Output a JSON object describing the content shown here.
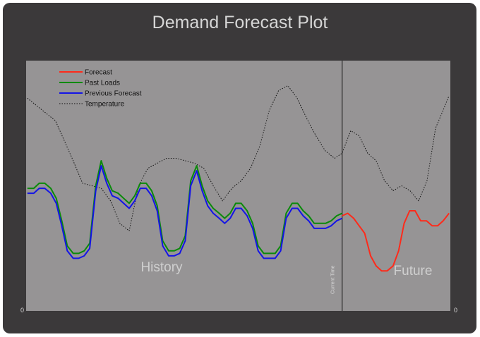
{
  "chart_data": {
    "type": "line",
    "title": "Demand Forecast Plot",
    "xlabel": "",
    "ylabel": "",
    "y_axis_left_tick": "0",
    "y_axis_right_tick": "0",
    "grid": false,
    "legend_position": "top-left",
    "current_time_label": "Current Time",
    "region_labels": {
      "history": "History",
      "future": "Future"
    },
    "x_range": [
      0,
      100
    ],
    "y_range": [
      0,
      100
    ],
    "current_time_x": 74.5,
    "series": [
      {
        "name": "Forecast",
        "color": "#ff2a1a",
        "style": "solid",
        "x": [
          74.5,
          75.8,
          77.2,
          78.5,
          79.8,
          81.2,
          82.5,
          83.8,
          85.1,
          86.5,
          87.8,
          89.1,
          90.4,
          91.7,
          93.0,
          94.4,
          95.7,
          97.0,
          98.3,
          99.7
        ],
        "y": [
          38,
          39,
          37,
          34,
          31,
          22,
          18,
          16,
          16,
          18,
          24,
          35,
          40,
          40,
          36,
          36,
          34,
          34,
          36,
          39
        ]
      },
      {
        "name": "Past Loads",
        "color": "#0a8a0a",
        "style": "solid",
        "x": [
          0.3,
          1.8,
          3.1,
          4.4,
          5.8,
          7.1,
          8.4,
          9.7,
          11.1,
          12.4,
          13.7,
          15.0,
          16.4,
          17.7,
          19.0,
          20.3,
          21.7,
          23.0,
          24.3,
          25.6,
          26.9,
          28.3,
          29.6,
          30.9,
          32.2,
          33.6,
          34.9,
          36.2,
          37.5,
          38.8,
          40.2,
          41.5,
          42.8,
          44.1,
          45.5,
          46.8,
          48.1,
          49.4,
          50.7,
          52.1,
          53.4,
          54.7,
          56.0,
          57.4,
          58.7,
          60.0,
          61.3,
          62.7,
          64.0,
          65.3,
          66.6,
          67.9,
          69.3,
          70.6,
          71.9,
          73.2,
          74.5
        ],
        "y": [
          49,
          49,
          51,
          51,
          49,
          45,
          36,
          26,
          23,
          23,
          24,
          27,
          50,
          60,
          53,
          48,
          47,
          45,
          43,
          46,
          51,
          51,
          48,
          42,
          28,
          24,
          24,
          25,
          30,
          52,
          58,
          50,
          44,
          41,
          39,
          37,
          39,
          43,
          43,
          40,
          35,
          26,
          23,
          23,
          23,
          26,
          39,
          43,
          43,
          40,
          38,
          35,
          35,
          35,
          36,
          38,
          39
        ]
      },
      {
        "name": "Previous Forecast",
        "color": "#1414e6",
        "style": "solid",
        "x": [
          0.3,
          1.8,
          3.1,
          4.4,
          5.8,
          7.1,
          8.4,
          9.7,
          11.1,
          12.4,
          13.7,
          15.0,
          16.4,
          17.7,
          19.0,
          20.3,
          21.7,
          23.0,
          24.3,
          25.6,
          26.9,
          28.3,
          29.6,
          30.9,
          32.2,
          33.6,
          34.9,
          36.2,
          37.5,
          38.8,
          40.2,
          41.5,
          42.8,
          44.1,
          45.5,
          46.8,
          48.1,
          49.4,
          50.7,
          52.1,
          53.4,
          54.7,
          56.0,
          57.4,
          58.7,
          60.0,
          61.3,
          62.7,
          64.0,
          65.3,
          66.6,
          67.9,
          69.3,
          70.6,
          71.9,
          73.2,
          74.5
        ],
        "y": [
          47,
          47,
          49,
          49,
          47,
          43,
          34,
          24,
          21,
          21,
          22,
          25,
          48,
          58,
          51,
          46,
          45,
          43,
          41,
          44,
          49,
          49,
          46,
          40,
          26,
          22,
          22,
          23,
          28,
          50,
          56,
          48,
          42,
          39,
          37,
          35,
          37,
          41,
          41,
          38,
          33,
          24,
          21,
          21,
          21,
          24,
          37,
          41,
          41,
          38,
          36,
          33,
          33,
          33,
          34,
          36,
          37
        ]
      },
      {
        "name": "Temperature",
        "color": "#111111",
        "style": "dotted",
        "x": [
          0.3,
          2.5,
          4.7,
          6.9,
          9.0,
          11.1,
          13.3,
          15.5,
          17.7,
          19.9,
          22.1,
          24.3,
          26.5,
          28.7,
          30.9,
          33.1,
          35.3,
          37.5,
          39.7,
          41.9,
          44.1,
          46.3,
          48.5,
          50.7,
          52.9,
          55.1,
          57.3,
          59.5,
          61.7,
          63.9,
          66.1,
          68.3,
          70.5,
          72.7,
          74.5,
          76.5,
          78.5,
          80.5,
          82.5,
          84.5,
          86.5,
          88.5,
          90.5,
          92.5,
          94.5,
          96.5,
          98.5,
          99.7
        ],
        "y": [
          85,
          82,
          79,
          76,
          68,
          60,
          51,
          50,
          49,
          44,
          35,
          32,
          50,
          57,
          59,
          61,
          61,
          60,
          59,
          57,
          50,
          44,
          49,
          52,
          57,
          66,
          80,
          88,
          90,
          85,
          77,
          70,
          64,
          61,
          63,
          72,
          70,
          63,
          60,
          52,
          48,
          50,
          48,
          44,
          52,
          73,
          81,
          86
        ]
      }
    ]
  }
}
